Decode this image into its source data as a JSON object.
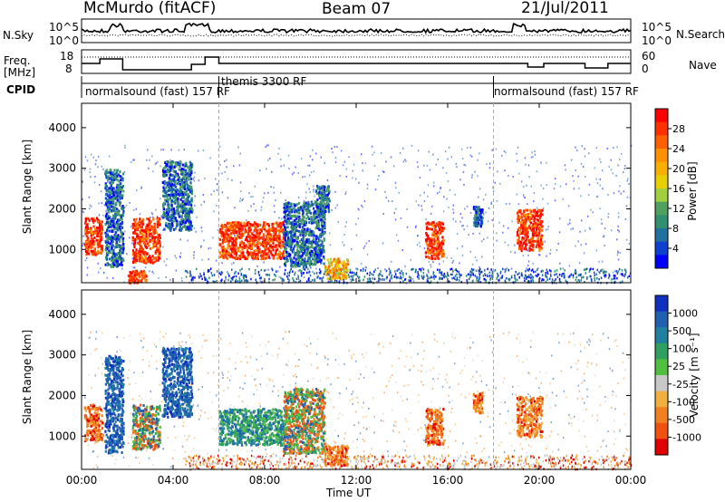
{
  "header": {
    "station": "McMurdo (fitACF)",
    "beam": "Beam 07",
    "date": "21/Jul/2011"
  },
  "top_panel": {
    "left_label": "N.Sky",
    "right_label": "N.Search",
    "ytick_top": "10^5",
    "ytick_bottom": "10^0"
  },
  "freq_panel": {
    "left_label_1": "Freq.",
    "left_label_2": "[MHz]",
    "right_label": "Nave",
    "left_ticks": [
      "18",
      "8"
    ],
    "right_ticks": [
      "60",
      "0"
    ]
  },
  "cpid": {
    "label": "CPID",
    "segments": [
      {
        "name": "normalsound (fast) 157 RF",
        "start_hour": 0
      },
      {
        "name": "themis 3300 RF",
        "start_hour": 6
      },
      {
        "name": "normalsound (fast) 157 RF",
        "start_hour": 18
      }
    ]
  },
  "power_cbar": {
    "title": "Power [dB]",
    "ticks": [
      "28",
      "24",
      "20",
      "16",
      "12",
      "8",
      "4"
    ],
    "colors": [
      "#ff0000",
      "#ff3000",
      "#ff6000",
      "#ff9000",
      "#f8b000",
      "#e8d000",
      "#a0d040",
      "#50a060",
      "#309070",
      "#2070a0",
      "#1040d0",
      "#0000ff"
    ]
  },
  "velocity_cbar": {
    "title": "Velocity [m s⁻¹]",
    "ticks": [
      "1000",
      "500",
      "100",
      "25",
      "-25",
      "-100",
      "-500",
      "-1000"
    ],
    "colors": [
      "#1030c0",
      "#2060b0",
      "#2080a0",
      "#30a060",
      "#50c040",
      "#c8c8c8",
      "#f0b040",
      "#f08020",
      "#f05010",
      "#e00000"
    ]
  },
  "chart_data": [
    {
      "type": "heatmap",
      "title": "Power [dB]",
      "ylabel": "Slant Range [km]",
      "xlabel": "Time UT",
      "x_ticks": [
        "00:00",
        "04:00",
        "08:00",
        "12:00",
        "16:00",
        "20:00",
        "00:00"
      ],
      "y_ticks": [
        "1000",
        "2000",
        "3000",
        "4000"
      ],
      "xlim": [
        0,
        24
      ],
      "ylim": [
        180,
        4600
      ],
      "patches": [
        {
          "t0": 0.1,
          "t1": 0.9,
          "r0": 900,
          "r1": 1800,
          "level": "high"
        },
        {
          "t0": 1.0,
          "t1": 1.8,
          "r0": 600,
          "r1": 3000,
          "level": "low"
        },
        {
          "t0": 2.2,
          "t1": 3.4,
          "r0": 700,
          "r1": 1800,
          "level": "high"
        },
        {
          "t0": 2.0,
          "t1": 2.8,
          "r0": 200,
          "r1": 500,
          "level": "high"
        },
        {
          "t0": 3.5,
          "t1": 4.8,
          "r0": 1500,
          "r1": 3200,
          "level": "low"
        },
        {
          "t0": 6.0,
          "t1": 8.8,
          "r0": 800,
          "r1": 1700,
          "level": "high"
        },
        {
          "t0": 8.8,
          "t1": 10.6,
          "r0": 600,
          "r1": 2200,
          "level": "low"
        },
        {
          "t0": 10.6,
          "t1": 11.6,
          "r0": 300,
          "r1": 800,
          "level": "mid"
        },
        {
          "t0": 10.2,
          "t1": 10.8,
          "r0": 1900,
          "r1": 2600,
          "level": "low"
        },
        {
          "t0": 15.0,
          "t1": 15.8,
          "r0": 800,
          "r1": 1700,
          "level": "high"
        },
        {
          "t0": 17.1,
          "t1": 17.5,
          "r0": 1600,
          "r1": 2100,
          "level": "low"
        },
        {
          "t0": 19.0,
          "t1": 20.1,
          "r0": 1000,
          "r1": 2000,
          "level": "high"
        }
      ]
    },
    {
      "type": "heatmap",
      "title": "Velocity [m s⁻¹]",
      "ylabel": "Slant Range [km]",
      "xlabel": "Time UT",
      "x_ticks": [
        "00:00",
        "04:00",
        "08:00",
        "12:00",
        "16:00",
        "20:00",
        "00:00"
      ],
      "y_ticks": [
        "1000",
        "2000",
        "3000",
        "4000"
      ],
      "xlim": [
        0,
        24
      ],
      "ylim": [
        180,
        4600
      ],
      "patches": [
        {
          "t0": 0.1,
          "t1": 0.9,
          "r0": 900,
          "r1": 1800,
          "level": "neg"
        },
        {
          "t0": 1.0,
          "t1": 1.8,
          "r0": 600,
          "r1": 3000,
          "level": "pos"
        },
        {
          "t0": 2.2,
          "t1": 3.4,
          "r0": 700,
          "r1": 1800,
          "level": "mixed"
        },
        {
          "t0": 3.5,
          "t1": 4.8,
          "r0": 1500,
          "r1": 3200,
          "level": "pos"
        },
        {
          "t0": 6.0,
          "t1": 8.8,
          "r0": 800,
          "r1": 1700,
          "level": "green"
        },
        {
          "t0": 8.8,
          "t1": 10.6,
          "r0": 600,
          "r1": 2200,
          "level": "mixed"
        },
        {
          "t0": 10.6,
          "t1": 11.6,
          "r0": 300,
          "r1": 800,
          "level": "neg"
        },
        {
          "t0": 15.0,
          "t1": 15.8,
          "r0": 800,
          "r1": 1700,
          "level": "neg"
        },
        {
          "t0": 17.1,
          "t1": 17.5,
          "r0": 1600,
          "r1": 2100,
          "level": "neg"
        },
        {
          "t0": 19.0,
          "t1": 20.1,
          "r0": 1000,
          "r1": 2000,
          "level": "neg"
        }
      ]
    }
  ]
}
